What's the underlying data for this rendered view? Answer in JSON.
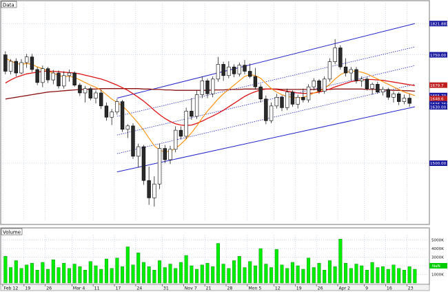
{
  "panels": {
    "price_label": "Data",
    "volume_label": "Volume"
  },
  "colors": {
    "up_candle": "#ffffff",
    "down_candle": "#2a2a2a",
    "wick": "#000000",
    "ma_fast": "#ff8c00",
    "ma_mid": "#dd1111",
    "ma_slow": "#8b1010",
    "channel": "#2222cc",
    "volume_bar": "#00ee00",
    "grid": "#9ab0d0",
    "axis_tag": "#1a1aa0",
    "ma_tag": "#c02020",
    "last_tag": "#00cc00"
  },
  "chart_data": [
    {
      "type": "candlestick",
      "title": "",
      "x_ticks": [
        "Feb 12",
        "19",
        "26",
        "Mar 4",
        "11",
        "17",
        "24",
        "31",
        "Nov 7",
        "21",
        "28",
        "Mon 5",
        "12",
        "19",
        "26",
        "Apr 2",
        "9",
        "16",
        "23"
      ],
      "y_ticks": [
        {
          "label": "1821.8812",
          "value": 1822
        },
        {
          "label": "1750.00",
          "value": 1750
        },
        {
          "label": "1500.00",
          "value": 1500
        }
      ],
      "right_tags": [
        {
          "label": "1679.7",
          "value": 1680,
          "kind": "ma"
        },
        {
          "label": "1655.70",
          "value": 1656,
          "kind": "axis"
        },
        {
          "label": "1648.6",
          "value": 1649,
          "kind": "ma"
        },
        {
          "label": "1636.7645",
          "value": 1637,
          "kind": "axis"
        },
        {
          "label": "1630.00",
          "value": 1630,
          "kind": "axis"
        }
      ],
      "ylim": [
        1365,
        1870
      ],
      "candles": [
        {
          "o": 1750,
          "h": 1758,
          "l": 1705,
          "c": 1712
        },
        {
          "o": 1712,
          "h": 1740,
          "l": 1705,
          "c": 1735
        },
        {
          "o": 1735,
          "h": 1742,
          "l": 1700,
          "c": 1708
        },
        {
          "o": 1708,
          "h": 1740,
          "l": 1705,
          "c": 1732
        },
        {
          "o": 1732,
          "h": 1752,
          "l": 1720,
          "c": 1745
        },
        {
          "o": 1745,
          "h": 1752,
          "l": 1710,
          "c": 1716
        },
        {
          "o": 1716,
          "h": 1722,
          "l": 1680,
          "c": 1686
        },
        {
          "o": 1686,
          "h": 1725,
          "l": 1675,
          "c": 1718
        },
        {
          "o": 1718,
          "h": 1722,
          "l": 1685,
          "c": 1692
        },
        {
          "o": 1692,
          "h": 1715,
          "l": 1682,
          "c": 1708
        },
        {
          "o": 1708,
          "h": 1714,
          "l": 1672,
          "c": 1678
        },
        {
          "o": 1678,
          "h": 1712,
          "l": 1672,
          "c": 1702
        },
        {
          "o": 1702,
          "h": 1716,
          "l": 1688,
          "c": 1708
        },
        {
          "o": 1708,
          "h": 1712,
          "l": 1676,
          "c": 1680
        },
        {
          "o": 1680,
          "h": 1685,
          "l": 1655,
          "c": 1662
        },
        {
          "o": 1662,
          "h": 1678,
          "l": 1640,
          "c": 1672
        },
        {
          "o": 1672,
          "h": 1676,
          "l": 1645,
          "c": 1650
        },
        {
          "o": 1650,
          "h": 1668,
          "l": 1638,
          "c": 1662
        },
        {
          "o": 1662,
          "h": 1670,
          "l": 1625,
          "c": 1632
        },
        {
          "o": 1632,
          "h": 1640,
          "l": 1598,
          "c": 1606
        },
        {
          "o": 1606,
          "h": 1625,
          "l": 1588,
          "c": 1618
        },
        {
          "o": 1618,
          "h": 1648,
          "l": 1612,
          "c": 1642
        },
        {
          "o": 1642,
          "h": 1646,
          "l": 1572,
          "c": 1578
        },
        {
          "o": 1578,
          "h": 1590,
          "l": 1558,
          "c": 1586
        },
        {
          "o": 1586,
          "h": 1592,
          "l": 1510,
          "c": 1516
        },
        {
          "o": 1516,
          "h": 1545,
          "l": 1490,
          "c": 1538
        },
        {
          "o": 1538,
          "h": 1542,
          "l": 1450,
          "c": 1460
        },
        {
          "o": 1460,
          "h": 1492,
          "l": 1404,
          "c": 1420
        },
        {
          "o": 1420,
          "h": 1470,
          "l": 1400,
          "c": 1452
        },
        {
          "o": 1452,
          "h": 1545,
          "l": 1440,
          "c": 1534
        },
        {
          "o": 1534,
          "h": 1542,
          "l": 1500,
          "c": 1508
        },
        {
          "o": 1508,
          "h": 1540,
          "l": 1498,
          "c": 1532
        },
        {
          "o": 1532,
          "h": 1585,
          "l": 1525,
          "c": 1576
        },
        {
          "o": 1576,
          "h": 1585,
          "l": 1555,
          "c": 1562
        },
        {
          "o": 1562,
          "h": 1628,
          "l": 1556,
          "c": 1620
        },
        {
          "o": 1620,
          "h": 1650,
          "l": 1600,
          "c": 1608
        },
        {
          "o": 1608,
          "h": 1668,
          "l": 1602,
          "c": 1658
        },
        {
          "o": 1658,
          "h": 1700,
          "l": 1650,
          "c": 1690
        },
        {
          "o": 1690,
          "h": 1695,
          "l": 1650,
          "c": 1660
        },
        {
          "o": 1660,
          "h": 1700,
          "l": 1652,
          "c": 1694
        },
        {
          "o": 1694,
          "h": 1745,
          "l": 1688,
          "c": 1728
        },
        {
          "o": 1728,
          "h": 1734,
          "l": 1690,
          "c": 1702
        },
        {
          "o": 1702,
          "h": 1735,
          "l": 1696,
          "c": 1722
        },
        {
          "o": 1722,
          "h": 1728,
          "l": 1698,
          "c": 1706
        },
        {
          "o": 1706,
          "h": 1732,
          "l": 1700,
          "c": 1726
        },
        {
          "o": 1726,
          "h": 1738,
          "l": 1705,
          "c": 1712
        },
        {
          "o": 1712,
          "h": 1730,
          "l": 1696,
          "c": 1700
        },
        {
          "o": 1700,
          "h": 1720,
          "l": 1670,
          "c": 1676
        },
        {
          "o": 1676,
          "h": 1682,
          "l": 1640,
          "c": 1648
        },
        {
          "o": 1648,
          "h": 1656,
          "l": 1590,
          "c": 1598
        },
        {
          "o": 1598,
          "h": 1640,
          "l": 1592,
          "c": 1632
        },
        {
          "o": 1632,
          "h": 1660,
          "l": 1626,
          "c": 1652
        },
        {
          "o": 1652,
          "h": 1656,
          "l": 1620,
          "c": 1628
        },
        {
          "o": 1628,
          "h": 1672,
          "l": 1622,
          "c": 1664
        },
        {
          "o": 1664,
          "h": 1668,
          "l": 1630,
          "c": 1636
        },
        {
          "o": 1636,
          "h": 1658,
          "l": 1626,
          "c": 1652
        },
        {
          "o": 1652,
          "h": 1672,
          "l": 1640,
          "c": 1646
        },
        {
          "o": 1646,
          "h": 1682,
          "l": 1640,
          "c": 1676
        },
        {
          "o": 1676,
          "h": 1696,
          "l": 1668,
          "c": 1690
        },
        {
          "o": 1690,
          "h": 1694,
          "l": 1660,
          "c": 1666
        },
        {
          "o": 1666,
          "h": 1700,
          "l": 1660,
          "c": 1694
        },
        {
          "o": 1694,
          "h": 1742,
          "l": 1688,
          "c": 1734
        },
        {
          "o": 1734,
          "h": 1786,
          "l": 1728,
          "c": 1766
        },
        {
          "o": 1766,
          "h": 1772,
          "l": 1716,
          "c": 1722
        },
        {
          "o": 1722,
          "h": 1742,
          "l": 1700,
          "c": 1708
        },
        {
          "o": 1708,
          "h": 1722,
          "l": 1690,
          "c": 1716
        },
        {
          "o": 1716,
          "h": 1722,
          "l": 1684,
          "c": 1690
        },
        {
          "o": 1690,
          "h": 1700,
          "l": 1676,
          "c": 1694
        },
        {
          "o": 1694,
          "h": 1698,
          "l": 1668,
          "c": 1672
        },
        {
          "o": 1672,
          "h": 1686,
          "l": 1658,
          "c": 1682
        },
        {
          "o": 1682,
          "h": 1688,
          "l": 1660,
          "c": 1664
        },
        {
          "o": 1664,
          "h": 1676,
          "l": 1656,
          "c": 1670
        },
        {
          "o": 1670,
          "h": 1674,
          "l": 1646,
          "c": 1652
        },
        {
          "o": 1652,
          "h": 1666,
          "l": 1640,
          "c": 1660
        },
        {
          "o": 1660,
          "h": 1664,
          "l": 1634,
          "c": 1642
        },
        {
          "o": 1642,
          "h": 1658,
          "l": 1636,
          "c": 1650
        },
        {
          "o": 1650,
          "h": 1660,
          "l": 1630,
          "c": 1638
        }
      ],
      "ma_fast": [
        1742,
        1736,
        1730,
        1728,
        1730,
        1728,
        1722,
        1718,
        1712,
        1708,
        1702,
        1700,
        1700,
        1698,
        1692,
        1686,
        1680,
        1675,
        1668,
        1658,
        1648,
        1640,
        1632,
        1620,
        1606,
        1592,
        1576,
        1558,
        1540,
        1530,
        1526,
        1528,
        1534,
        1544,
        1556,
        1570,
        1586,
        1604,
        1620,
        1634,
        1648,
        1660,
        1670,
        1680,
        1690,
        1700,
        1704,
        1702,
        1696,
        1684,
        1672,
        1664,
        1658,
        1654,
        1652,
        1650,
        1652,
        1656,
        1662,
        1666,
        1672,
        1682,
        1694,
        1704,
        1710,
        1712,
        1712,
        1710,
        1706,
        1700,
        1694,
        1688,
        1682,
        1676,
        1670,
        1664,
        1660,
        1656
      ],
      "ma_mid": [
        1685,
        1692,
        1698,
        1702,
        1706,
        1708,
        1710,
        1712,
        1712,
        1712,
        1711,
        1710,
        1709,
        1708,
        1706,
        1703,
        1700,
        1697,
        1694,
        1690,
        1685,
        1680,
        1674,
        1668,
        1660,
        1652,
        1643,
        1633,
        1622,
        1612,
        1603,
        1596,
        1591,
        1588,
        1587,
        1588,
        1592,
        1597,
        1603,
        1609,
        1615,
        1622,
        1630,
        1638,
        1646,
        1654,
        1660,
        1665,
        1669,
        1671,
        1671,
        1670,
        1668,
        1666,
        1664,
        1662,
        1661,
        1661,
        1662,
        1664,
        1667,
        1671,
        1676,
        1680,
        1684,
        1688,
        1690,
        1692,
        1693,
        1693,
        1692,
        1691,
        1689,
        1687,
        1685,
        1683,
        1681,
        1679
      ],
      "ma_slow": [
        1648,
        1650,
        1652,
        1654,
        1656,
        1658,
        1660,
        1662,
        1664,
        1665,
        1666,
        1667,
        1668,
        1669,
        1670,
        1670,
        1671,
        1671,
        1672,
        1672,
        1672,
        1672,
        1672,
        1672,
        1672,
        1672,
        1671,
        1671,
        1670,
        1670,
        1669,
        1669,
        1668,
        1668,
        1668,
        1668,
        1668,
        1668,
        1668,
        1669,
        1669,
        1669,
        1670,
        1670,
        1670,
        1671,
        1671,
        1671,
        1671,
        1671,
        1671,
        1671,
        1670,
        1670,
        1670,
        1670,
        1670,
        1670,
        1670,
        1670,
        1670,
        1670,
        1671,
        1671,
        1671,
        1671,
        1671,
        1671,
        1670,
        1670,
        1670,
        1669,
        1669,
        1668,
        1668,
        1667,
        1667,
        1666
      ],
      "channel": {
        "upper": {
          "from_index": 21,
          "to_index": 77,
          "from": 1650,
          "to": 1822
        },
        "lower": {
          "from_index": 21,
          "to_index": 77,
          "from": 1480,
          "to": 1630
        },
        "inner": [
          {
            "from_index": 21,
            "to_index": 77,
            "from": 1608,
            "to": 1768
          },
          {
            "from_index": 21,
            "to_index": 77,
            "from": 1565,
            "to": 1725
          },
          {
            "from_index": 21,
            "to_index": 77,
            "from": 1522,
            "to": 1682
          }
        ]
      }
    },
    {
      "type": "bar",
      "title": "",
      "y_ticks": [
        {
          "label": "5000K",
          "value": 5000
        },
        {
          "label": "4000K",
          "value": 4000
        },
        {
          "label": "3000K",
          "value": 3000
        },
        {
          "label": "2000K",
          "value": 2000
        },
        {
          "label": "1000K",
          "value": 1000
        }
      ],
      "last_tag": {
        "label": "NaN",
        "value": 2000
      },
      "ylim": [
        0,
        5600
      ],
      "values": [
        3100,
        1800,
        2600,
        1700,
        2100,
        2300,
        1500,
        2400,
        1600,
        2700,
        1800,
        2300,
        1700,
        2200,
        1900,
        1500,
        2500,
        2000,
        1600,
        2800,
        1700,
        2900,
        1900,
        4200,
        2100,
        3500,
        2400,
        1900,
        1500,
        2600,
        1800,
        2200,
        1700,
        2400,
        3200,
        2000,
        1600,
        2100,
        2300,
        1900,
        4600,
        2200,
        1700,
        2600,
        3100,
        1800,
        2500,
        2000,
        4000,
        2200,
        1800,
        3900,
        2100,
        1700,
        2400,
        2000,
        1600,
        2900,
        1800,
        2300,
        1500,
        2600,
        1900,
        5100,
        2300,
        1700,
        2200,
        2000,
        1500,
        2400,
        1800,
        1900,
        1600,
        2100,
        1700,
        1500,
        1900,
        1600
      ]
    }
  ]
}
